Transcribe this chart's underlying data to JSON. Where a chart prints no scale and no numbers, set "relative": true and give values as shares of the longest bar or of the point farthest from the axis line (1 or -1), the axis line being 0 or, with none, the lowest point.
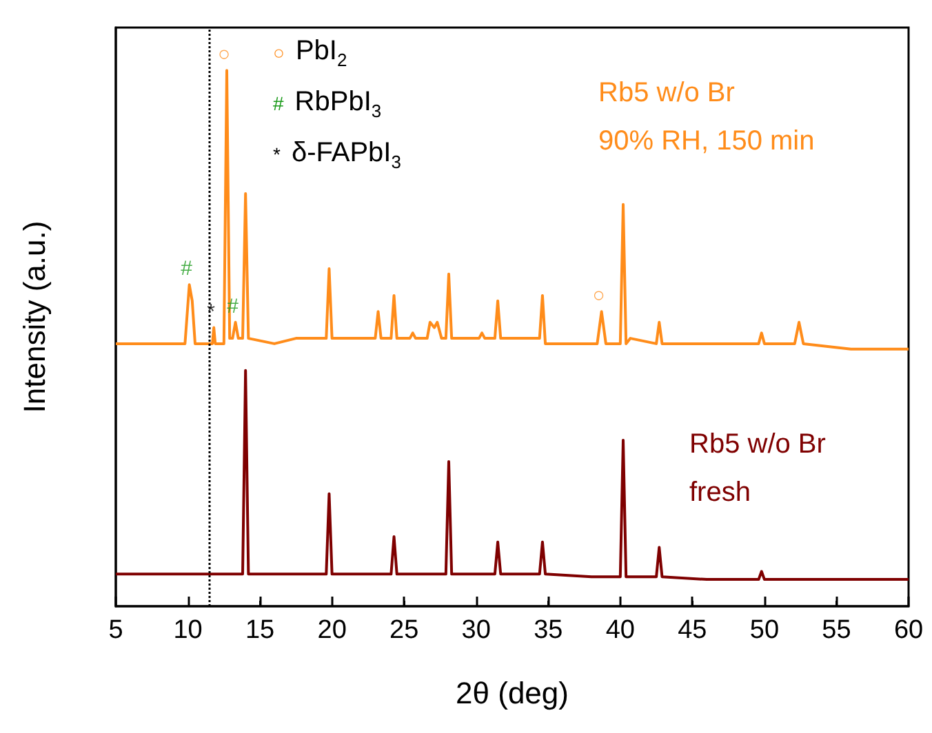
{
  "chart_data": {
    "type": "line",
    "relative": true,
    "xlabel": "2θ (deg)",
    "ylabel": "Intensity (a.u.)",
    "xlim": [
      5,
      60
    ],
    "xticks": [
      5,
      10,
      15,
      20,
      25,
      30,
      35,
      40,
      45,
      50,
      55,
      60
    ],
    "tick_labels": "x",
    "grid": false,
    "legend": false,
    "marker": "none",
    "line_style": "solid",
    "series": [
      {
        "name": "Rb5 w/o Br\n90% RH, 150 min",
        "color": "#ff8c1a",
        "x": [
          5,
          6.5,
          8,
          9.8,
          10.1,
          10.3,
          10.5,
          11.5,
          11.7,
          11.8,
          11.9,
          12.5,
          12.7,
          12.9,
          13.1,
          13.3,
          13.5,
          13.8,
          14.0,
          14.2,
          16,
          17.5,
          19.6,
          19.8,
          20,
          22,
          23.0,
          23.2,
          23.4,
          24.1,
          24.3,
          24.5,
          25.4,
          25.6,
          25.8,
          26.6,
          26.8,
          27.1,
          27.3,
          27.6,
          27.9,
          28.1,
          28.3,
          30.2,
          30.4,
          30.6,
          31.3,
          31.5,
          31.7,
          34.4,
          34.6,
          34.8,
          38.4,
          38.7,
          39.0,
          40.0,
          40.2,
          40.4,
          40.7,
          42.5,
          42.7,
          42.9,
          46,
          49.6,
          49.8,
          50,
          52.1,
          52.4,
          52.7,
          56,
          60
        ],
        "values": [
          0.49,
          0.49,
          0.49,
          0.49,
          0.6,
          0.57,
          0.49,
          0.49,
          0.49,
          0.52,
          0.49,
          0.49,
          1,
          0.5,
          0.5,
          0.53,
          0.5,
          0.5,
          0.77,
          0.5,
          0.49,
          0.5,
          0.5,
          0.63,
          0.5,
          0.5,
          0.5,
          0.55,
          0.5,
          0.5,
          0.58,
          0.5,
          0.5,
          0.51,
          0.5,
          0.5,
          0.53,
          0.52,
          0.53,
          0.5,
          0.5,
          0.62,
          0.5,
          0.5,
          0.51,
          0.5,
          0.5,
          0.57,
          0.5,
          0.5,
          0.58,
          0.49,
          0.49,
          0.55,
          0.49,
          0.49,
          0.75,
          0.49,
          0.5,
          0.49,
          0.53,
          0.49,
          0.49,
          0.49,
          0.51,
          0.49,
          0.49,
          0.53,
          0.49,
          0.48,
          0.48
        ]
      },
      {
        "name": "Rb5 w/o Br\nfresh",
        "color": "#7f0000",
        "x": [
          5,
          8,
          11,
          13.8,
          14.0,
          14.2,
          17,
          19.6,
          19.8,
          20,
          22.5,
          24.1,
          24.3,
          24.5,
          26,
          27.9,
          28.1,
          28.3,
          30,
          31.3,
          31.5,
          31.7,
          33,
          34.4,
          34.6,
          34.8,
          38,
          40.0,
          40.2,
          40.4,
          42.5,
          42.7,
          42.9,
          46,
          49.6,
          49.8,
          50,
          55,
          60
        ],
        "values": [
          0.06,
          0.06,
          0.06,
          0.06,
          0.44,
          0.06,
          0.06,
          0.06,
          0.21,
          0.06,
          0.06,
          0.06,
          0.13,
          0.06,
          0.06,
          0.06,
          0.27,
          0.06,
          0.06,
          0.06,
          0.12,
          0.06,
          0.06,
          0.06,
          0.12,
          0.06,
          0.055,
          0.055,
          0.31,
          0.055,
          0.055,
          0.11,
          0.055,
          0.05,
          0.05,
          0.065,
          0.05,
          0.05,
          0.05
        ]
      }
    ],
    "ref_lines": [
      {
        "axis": "x",
        "value": 11.5,
        "line_style": "dotted",
        "color": "#000000"
      }
    ],
    "annotations": [
      {
        "text": "○",
        "x": 12.7,
        "y": 1
      },
      {
        "text": "#",
        "x": 10.1,
        "y": 0.6
      },
      {
        "text": "*",
        "x": 11.8,
        "y": 0.52
      },
      {
        "text": "#",
        "x": 13.3,
        "y": 0.53
      },
      {
        "text": "○",
        "x": 38.7,
        "y": 0.55
      },
      "○  PbI$_{2}$",
      "#  RbPbI$_{3}$",
      "*  δ-FAPbI$_{3}$"
    ]
  }
}
